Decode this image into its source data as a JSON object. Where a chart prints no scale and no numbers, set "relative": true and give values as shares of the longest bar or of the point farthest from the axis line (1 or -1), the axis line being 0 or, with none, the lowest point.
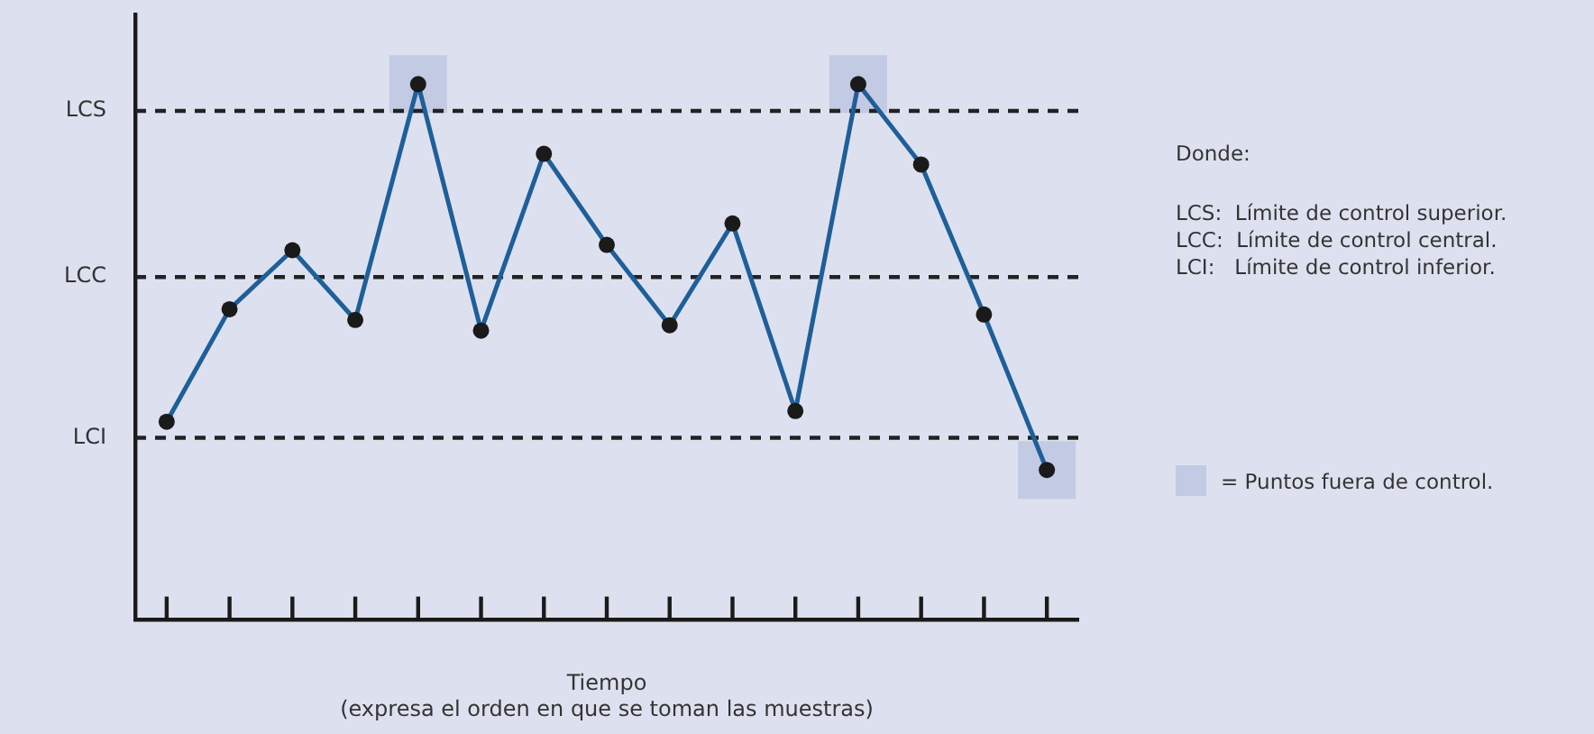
{
  "chart_data": {
    "type": "line",
    "relative": true,
    "xlabel": "Tiempo\n(expresa el orden en que se toman las muestras)",
    "categories": [
      null,
      null,
      null,
      null,
      null,
      null,
      null,
      null,
      null,
      null,
      null,
      null,
      null,
      null,
      null
    ],
    "series": [
      {
        "color": "#1f5f99",
        "marker": "circle",
        "values": [
          0.37,
          0.58,
          0.69,
          0.56,
          1.0,
          0.54,
          0.87,
          0.7,
          0.55,
          0.74,
          0.39,
          1.0,
          0.85,
          0.57,
          0.28
        ]
      }
    ],
    "ref_lines": [
      {
        "axis": "y",
        "value": 0.95,
        "label": "LCS",
        "color": "#222222",
        "line_style": "dashed"
      },
      {
        "axis": "y",
        "value": 0.64,
        "label": "LCC",
        "color": "#222222",
        "line_style": "dashed"
      },
      {
        "axis": "y",
        "value": 0.34,
        "label": "LCI",
        "color": "#222222",
        "line_style": "dashed"
      }
    ],
    "annotations": [
      "Donde:",
      "LCS:  Límite de control superior.",
      "LCC:  Límite de control central.",
      "LCI:   Límite de control inferior.",
      "= Puntos fuera de control."
    ],
    "grid": false
  }
}
